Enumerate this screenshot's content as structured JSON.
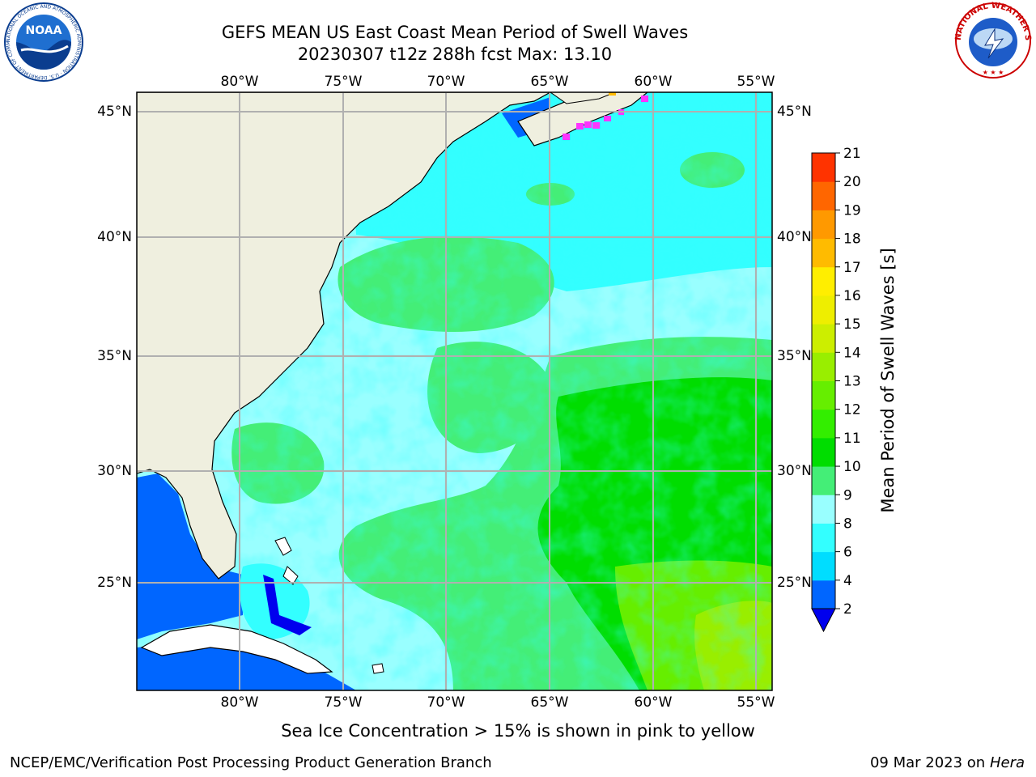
{
  "header": {
    "title_line1": "GEFS MEAN US East Coast Mean Period of Swell Waves",
    "title_line2": "20230307 t12z 288h fcst   Max: 13.10"
  },
  "logos": {
    "left": {
      "name": "noaa-logo",
      "text": "NOAA",
      "ring_text": "NATIONAL OCEANIC AND ATMOSPHERIC ADMINISTRATION · U.S. DEPARTMENT OF COMMERCE"
    },
    "right": {
      "name": "nws-logo",
      "ring_text": "NATIONAL WEATHER SERVICE"
    }
  },
  "map": {
    "lon_labels": [
      "80°W",
      "75°W",
      "70°W",
      "65°W",
      "60°W",
      "55°W"
    ],
    "lat_labels": [
      "45°N",
      "40°N",
      "35°N",
      "30°N",
      "25°N"
    ],
    "colors": {
      "land": "#efefdf",
      "coast": "#000000",
      "grid": "#b0b0b0",
      "sea_ice": "#ff33ff"
    }
  },
  "colorbar": {
    "label": "Mean Period of Swell Waves [s]",
    "ticks": [
      "2",
      "4",
      "6",
      "8",
      "9",
      "10",
      "11",
      "12",
      "13",
      "14",
      "15",
      "16",
      "17",
      "18",
      "19",
      "20",
      "21"
    ],
    "colors": [
      "#0066ff",
      "#00ddff",
      "#33ffff",
      "#99ffff",
      "#44ee77",
      "#00dd00",
      "#33ee00",
      "#66ee00",
      "#99ee00",
      "#ccee00",
      "#eeee00",
      "#ffee00",
      "#ffbb00",
      "#ff9900",
      "#ff6600",
      "#ff3300",
      "#ff0000"
    ],
    "under_color": "#0000ee"
  },
  "footer": {
    "sub_note": "Sea Ice Concentration > 15% is shown in pink to yellow",
    "credit": "NCEP/EMC/Verification Post Processing Product Generation Branch",
    "date": "09 Mar 2023 on",
    "machine": "Hera"
  }
}
